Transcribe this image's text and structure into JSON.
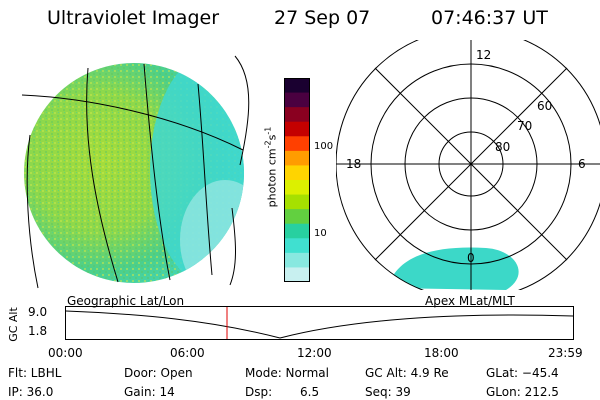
{
  "header": {
    "instrument": "Ultraviolet Imager",
    "date": "27 Sep 07",
    "time": "07:46:37 UT"
  },
  "colorbar": {
    "unit_main": "photon cm",
    "unit_sup1": "-2",
    "unit_mid": "s",
    "unit_sup2": "-1",
    "ticks": [
      "100",
      "10"
    ],
    "colors": [
      "#1a0030",
      "#4a0040",
      "#8a0020",
      "#c40000",
      "#ff4000",
      "#ff9c00",
      "#ffd400",
      "#dcf000",
      "#a6e000",
      "#62d040",
      "#28d0a0",
      "#40e0d0",
      "#88e8e0",
      "#c8f0f0"
    ]
  },
  "polar_plot": {
    "lat_labels": [
      "60",
      "70",
      "80"
    ],
    "mlt_labels": [
      "12",
      "18",
      "6",
      "0"
    ]
  },
  "timeline": {
    "left_label": "Geographic Lat/Lon",
    "right_label": "Apex MLat/MLT",
    "axis_title": "GC Alt",
    "y_top": "9.0",
    "y_bottom": "1.8",
    "x_ticks": [
      "00:00",
      "06:00",
      "12:00",
      "18:00",
      "23:59"
    ]
  },
  "status": {
    "flt": "Flt: LBHL",
    "ip": "IP: 36.0",
    "door": "Door: Open",
    "gain": "Gain: 14",
    "mode": "Mode: Normal",
    "dsp_label": "Dsp:",
    "dsp_value": "6.5",
    "gc_alt": "GC Alt: 4.9 Re",
    "seq": "Seq: 39",
    "glat": "GLat: −45.4",
    "glon": "GLon: 212.5"
  }
}
